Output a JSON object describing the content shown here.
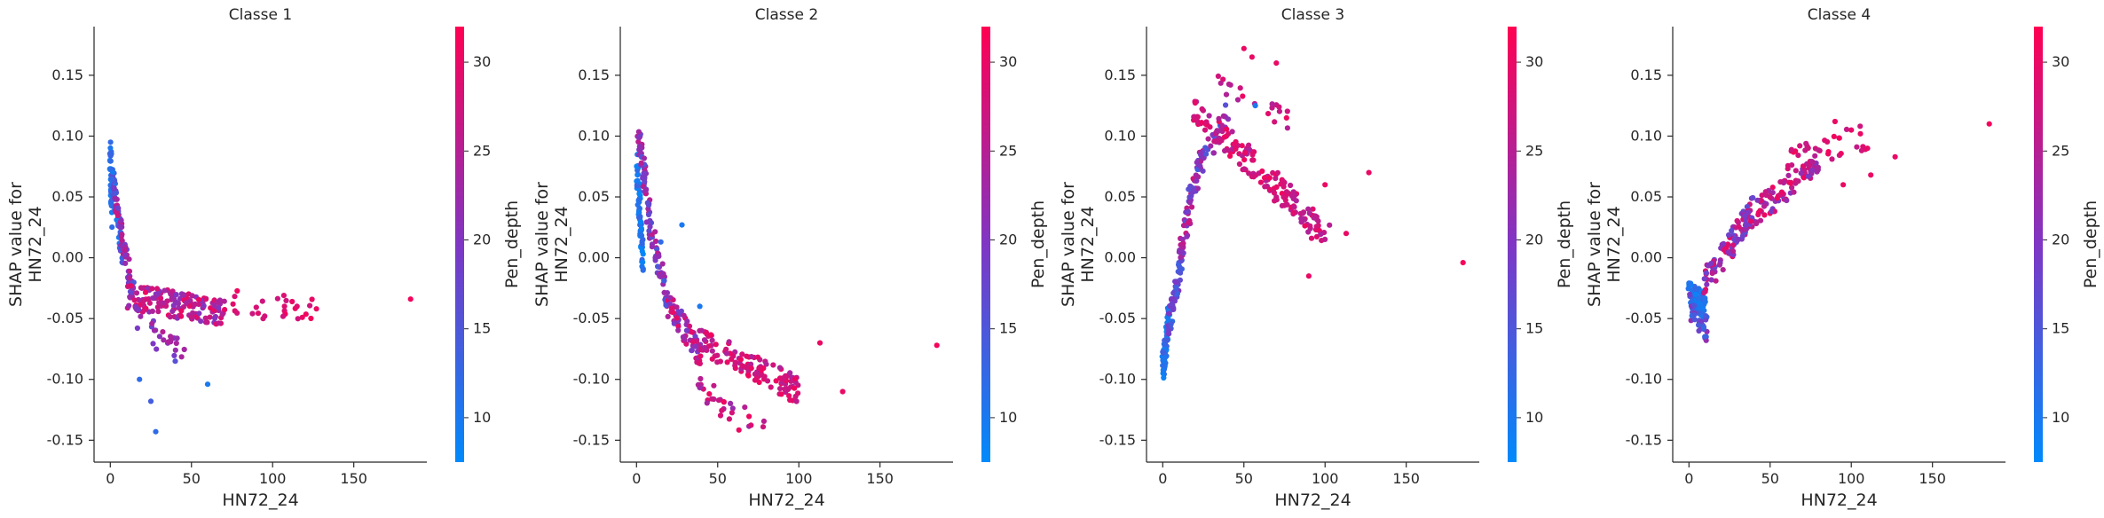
{
  "chart_data": [
    {
      "type": "scatter",
      "title": "Classe 1",
      "xlabel": "HN72_24",
      "ylabel": "SHAP value for\nHN72_24",
      "colorbar_label": "Pen_depth",
      "xlim": [
        -10,
        195
      ],
      "ylim": [
        -0.168,
        0.19
      ],
      "xticks": [
        0,
        50,
        100,
        150
      ],
      "yticks": [
        -0.15,
        -0.1,
        -0.05,
        0.0,
        0.05,
        0.1,
        0.15
      ],
      "clim": [
        7.5,
        32
      ],
      "cticks": [
        10,
        15,
        20,
        25,
        30
      ],
      "colormap": [
        "#008afb",
        "#7f36c4",
        "#ff0052"
      ],
      "grid": false,
      "segments": [
        {
          "x": [
            0,
            1
          ],
          "y": [
            0.092,
            0.03
          ],
          "c": [
            8,
            14
          ],
          "n": 40
        },
        {
          "x": [
            1,
            8
          ],
          "y": [
            0.07,
            0.0
          ],
          "c": [
            9,
            18
          ],
          "n": 60
        },
        {
          "x": [
            2,
            8
          ],
          "y": [
            0.06,
            0.01
          ],
          "c": [
            18,
            28
          ],
          "n": 25
        },
        {
          "x": [
            8,
            14
          ],
          "y": [
            0.01,
            -0.03
          ],
          "c": [
            15,
            26
          ],
          "n": 30
        },
        {
          "x": [
            12,
            70
          ],
          "y": [
            -0.032,
            -0.045
          ],
          "c": [
            20,
            31
          ],
          "n": 160
        },
        {
          "x": [
            70,
            125
          ],
          "y": [
            -0.035,
            -0.045
          ],
          "c": [
            27,
            31
          ],
          "n": 25
        },
        {
          "x": [
            14,
            45
          ],
          "y": [
            -0.05,
            -0.08
          ],
          "c": [
            17,
            26
          ],
          "n": 25
        }
      ],
      "points": [
        {
          "x": 28,
          "y": -0.143,
          "c": 12
        },
        {
          "x": 60,
          "y": -0.104,
          "c": 10
        },
        {
          "x": 25,
          "y": -0.118,
          "c": 14
        },
        {
          "x": 18,
          "y": -0.1,
          "c": 12
        },
        {
          "x": 40,
          "y": -0.085,
          "c": 16
        },
        {
          "x": 185,
          "y": -0.034,
          "c": 31
        },
        {
          "x": 127,
          "y": -0.042,
          "c": 30
        },
        {
          "x": 112,
          "y": -0.036,
          "c": 30
        },
        {
          "x": 115,
          "y": -0.04,
          "c": 29
        }
      ]
    },
    {
      "type": "scatter",
      "title": "Classe 2",
      "xlabel": "HN72_24",
      "ylabel": "SHAP value for\nHN72_24",
      "colorbar_label": "Pen_depth",
      "xlim": [
        -10,
        195
      ],
      "ylim": [
        -0.168,
        0.19
      ],
      "xticks": [
        0,
        50,
        100,
        150
      ],
      "yticks": [
        -0.15,
        -0.1,
        -0.05,
        0.0,
        0.05,
        0.1,
        0.15
      ],
      "clim": [
        7.5,
        32
      ],
      "cticks": [
        10,
        15,
        20,
        25,
        30
      ],
      "colormap": [
        "#008afb",
        "#7f36c4",
        "#ff0052"
      ],
      "grid": false,
      "segments": [
        {
          "x": [
            0,
            4
          ],
          "y": [
            0.08,
            -0.005
          ],
          "c": [
            8,
            13
          ],
          "n": 70
        },
        {
          "x": [
            1,
            8
          ],
          "y": [
            0.1,
            0.04
          ],
          "c": [
            15,
            27
          ],
          "n": 50
        },
        {
          "x": [
            6,
            20
          ],
          "y": [
            0.04,
            -0.04
          ],
          "c": [
            14,
            26
          ],
          "n": 50
        },
        {
          "x": [
            20,
            40
          ],
          "y": [
            -0.04,
            -0.08
          ],
          "c": [
            18,
            30
          ],
          "n": 70
        },
        {
          "x": [
            40,
            100
          ],
          "y": [
            -0.07,
            -0.11
          ],
          "c": [
            24,
            31
          ],
          "n": 120
        },
        {
          "x": [
            30,
            80
          ],
          "y": [
            -0.1,
            -0.145
          ],
          "c": [
            22,
            31
          ],
          "n": 30
        }
      ],
      "points": [
        {
          "x": 185,
          "y": -0.072,
          "c": 31
        },
        {
          "x": 127,
          "y": -0.11,
          "c": 30
        },
        {
          "x": 28,
          "y": 0.027,
          "c": 10
        },
        {
          "x": 39,
          "y": -0.04,
          "c": 10
        },
        {
          "x": 15,
          "y": 0.013,
          "c": 12
        },
        {
          "x": 113,
          "y": -0.07,
          "c": 30
        }
      ]
    },
    {
      "type": "scatter",
      "title": "Classe 3",
      "xlabel": "HN72_24",
      "ylabel": "SHAP value for\nHN72_24",
      "colorbar_label": "Pen_depth",
      "xlim": [
        -10,
        195
      ],
      "ylim": [
        -0.168,
        0.19
      ],
      "xticks": [
        0,
        50,
        100,
        150
      ],
      "yticks": [
        -0.15,
        -0.1,
        -0.05,
        0.0,
        0.05,
        0.1,
        0.15
      ],
      "clim": [
        7.5,
        32
      ],
      "cticks": [
        10,
        15,
        20,
        25,
        30
      ],
      "colormap": [
        "#008afb",
        "#7f36c4",
        "#ff0052"
      ],
      "grid": false,
      "segments": [
        {
          "x": [
            0,
            4
          ],
          "y": [
            -0.09,
            -0.045
          ],
          "c": [
            8,
            14
          ],
          "n": 70
        },
        {
          "x": [
            3,
            12
          ],
          "y": [
            -0.06,
            0.0
          ],
          "c": [
            12,
            20
          ],
          "n": 50
        },
        {
          "x": [
            10,
            25
          ],
          "y": [
            0.0,
            0.09
          ],
          "c": [
            16,
            28
          ],
          "n": 60
        },
        {
          "x": [
            15,
            40
          ],
          "y": [
            0.05,
            0.12
          ],
          "c": [
            14,
            24
          ],
          "n": 40
        },
        {
          "x": [
            20,
            100
          ],
          "y": [
            0.12,
            0.02
          ],
          "c": [
            24,
            31
          ],
          "n": 170
        },
        {
          "x": [
            35,
            80
          ],
          "y": [
            0.14,
            0.11
          ],
          "c": [
            24,
            31
          ],
          "n": 20
        }
      ],
      "points": [
        {
          "x": 185,
          "y": -0.004,
          "c": 31
        },
        {
          "x": 127,
          "y": 0.07,
          "c": 30
        },
        {
          "x": 50,
          "y": 0.172,
          "c": 30
        },
        {
          "x": 55,
          "y": 0.165,
          "c": 30
        },
        {
          "x": 70,
          "y": 0.16,
          "c": 30
        },
        {
          "x": 90,
          "y": -0.015,
          "c": 30
        },
        {
          "x": 113,
          "y": 0.02,
          "c": 30
        },
        {
          "x": 57,
          "y": 0.125,
          "c": 10
        },
        {
          "x": 100,
          "y": 0.06,
          "c": 30
        }
      ]
    },
    {
      "type": "scatter",
      "title": "Classe 4",
      "xlabel": "HN72_24",
      "ylabel": "SHAP value for\nHN72_24",
      "colorbar_label": "Pen_depth",
      "xlim": [
        -10,
        195
      ],
      "ylim": [
        -0.168,
        0.19
      ],
      "xticks": [
        0,
        50,
        100,
        150
      ],
      "yticks": [
        -0.15,
        -0.1,
        -0.05,
        0.0,
        0.05,
        0.1,
        0.15
      ],
      "clim": [
        7.5,
        32
      ],
      "cticks": [
        10,
        15,
        20,
        25,
        30
      ],
      "colormap": [
        "#008afb",
        "#7f36c4",
        "#ff0052"
      ],
      "grid": false,
      "segments": [
        {
          "x": [
            0,
            10
          ],
          "y": [
            -0.03,
            -0.04
          ],
          "c": [
            8,
            13
          ],
          "n": 80
        },
        {
          "x": [
            0,
            12
          ],
          "y": [
            -0.04,
            -0.06
          ],
          "c": [
            12,
            22
          ],
          "n": 30
        },
        {
          "x": [
            10,
            40
          ],
          "y": [
            -0.02,
            0.04
          ],
          "c": [
            16,
            30
          ],
          "n": 90
        },
        {
          "x": [
            35,
            80
          ],
          "y": [
            0.03,
            0.08
          ],
          "c": [
            18,
            31
          ],
          "n": 100
        },
        {
          "x": [
            60,
            110
          ],
          "y": [
            0.08,
            0.1
          ],
          "c": [
            26,
            31
          ],
          "n": 35
        }
      ],
      "points": [
        {
          "x": 185,
          "y": 0.11,
          "c": 31
        },
        {
          "x": 127,
          "y": 0.083,
          "c": 30
        },
        {
          "x": 110,
          "y": 0.09,
          "c": 30
        },
        {
          "x": 90,
          "y": 0.112,
          "c": 30
        },
        {
          "x": 100,
          "y": 0.105,
          "c": 30
        },
        {
          "x": 112,
          "y": 0.068,
          "c": 30
        },
        {
          "x": 95,
          "y": 0.06,
          "c": 30
        }
      ]
    }
  ]
}
